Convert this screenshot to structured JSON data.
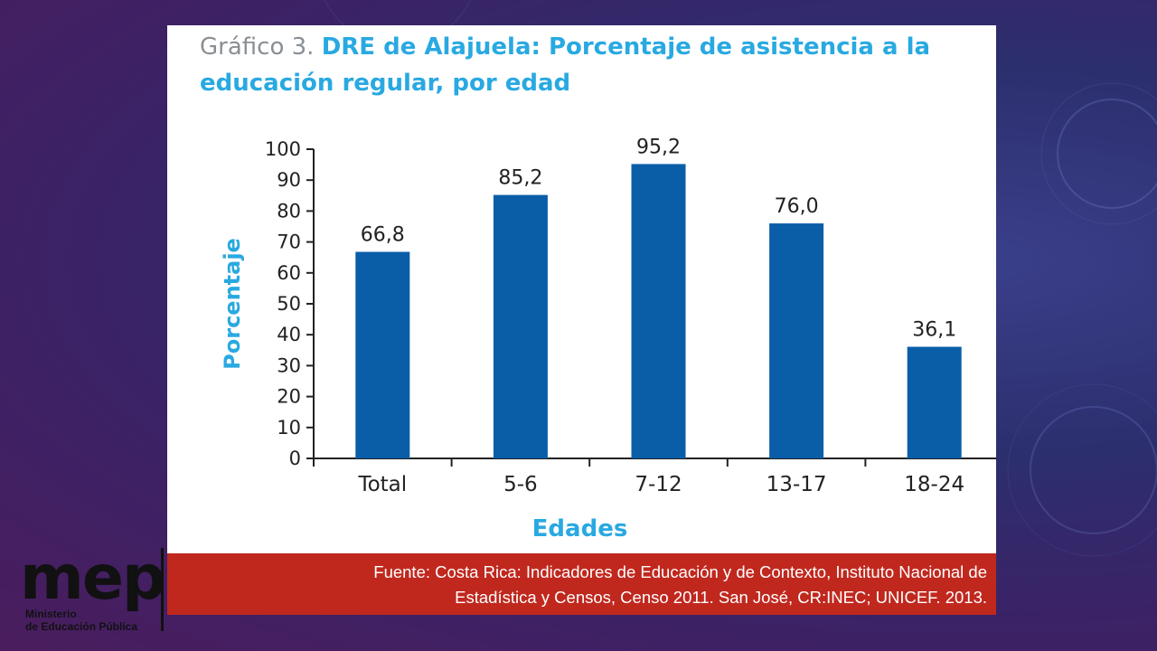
{
  "slide": {
    "title_lead": "Gráfico 3. ",
    "title_main": "DRE de Alajuela: Porcentaje de asistencia a la educación regular, por edad",
    "source_line1": "Fuente: Costa Rica: Indicadores de Educación y de Contexto, Instituto Nacional de",
    "source_line2": "Estadística y Censos, Censo 2011.  San José, CR:INEC; UNICEF. 2013.",
    "logo_text": "mep",
    "logo_sub1": "Ministerio",
    "logo_sub2": "de Educación Pública"
  },
  "colors": {
    "bar": "#0a5ea8",
    "accent": "#29a9e1",
    "source_bg": "#c0281e"
  },
  "chart_data": {
    "type": "bar",
    "title": "",
    "xlabel": "Edades",
    "ylabel": "Porcentaje",
    "categories": [
      "Total",
      "5-6",
      "7-12",
      "13-17",
      "18-24"
    ],
    "values": [
      66.8,
      85.2,
      95.2,
      76.0,
      36.1
    ],
    "value_labels": [
      "66,8",
      "85,2",
      "95,2",
      "76,0",
      "36,1"
    ],
    "ylim": [
      0,
      100
    ],
    "yticks": [
      0,
      10,
      20,
      30,
      40,
      50,
      60,
      70,
      80,
      90,
      100
    ],
    "grid": false,
    "legend": "none"
  }
}
